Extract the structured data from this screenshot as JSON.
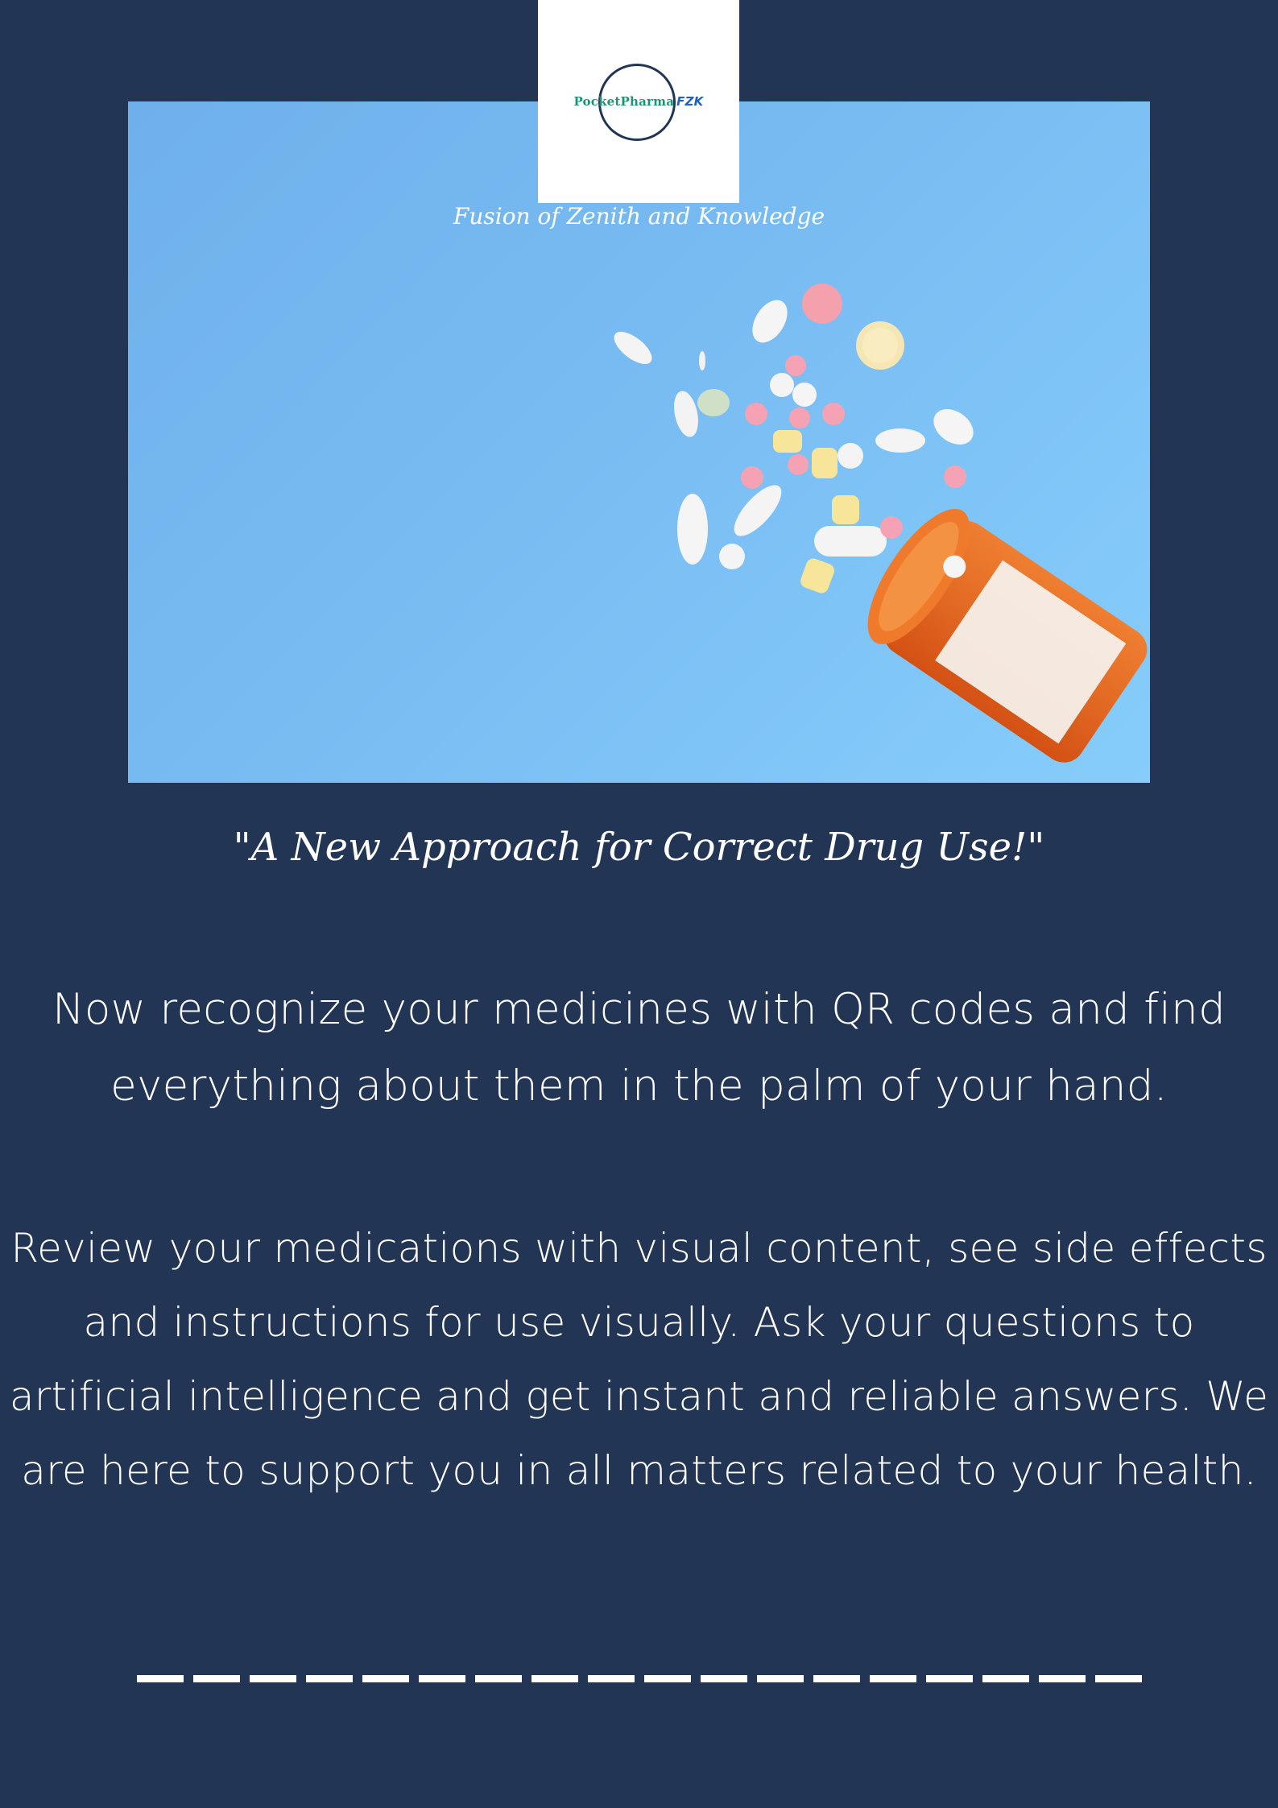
{
  "brand": {
    "name_part1": "PocketPharma",
    "name_part2": "FZK",
    "tagline": "Fusion of Zenith and Knowledge"
  },
  "hero": {
    "image_subject": "colorful pills spilling from an orange prescription bottle on a blue background"
  },
  "slogan": "\"A New Approach for Correct Drug Use!\"",
  "paragraphs": [
    "Now recognize your medicines with QR codes and find everything about them in the palm of your hand.",
    "Review your medications with visual content, see side effects and instructions for use visually. Ask your questions to artificial intelligence and get instant and reliable answers. We are here to support you in all matters related to your health."
  ],
  "colors": {
    "background": "#233554",
    "hero_blue": "#78bbf2",
    "text": "#ffffff",
    "brand_green": "#1c9277",
    "brand_blue": "#2262b5"
  }
}
